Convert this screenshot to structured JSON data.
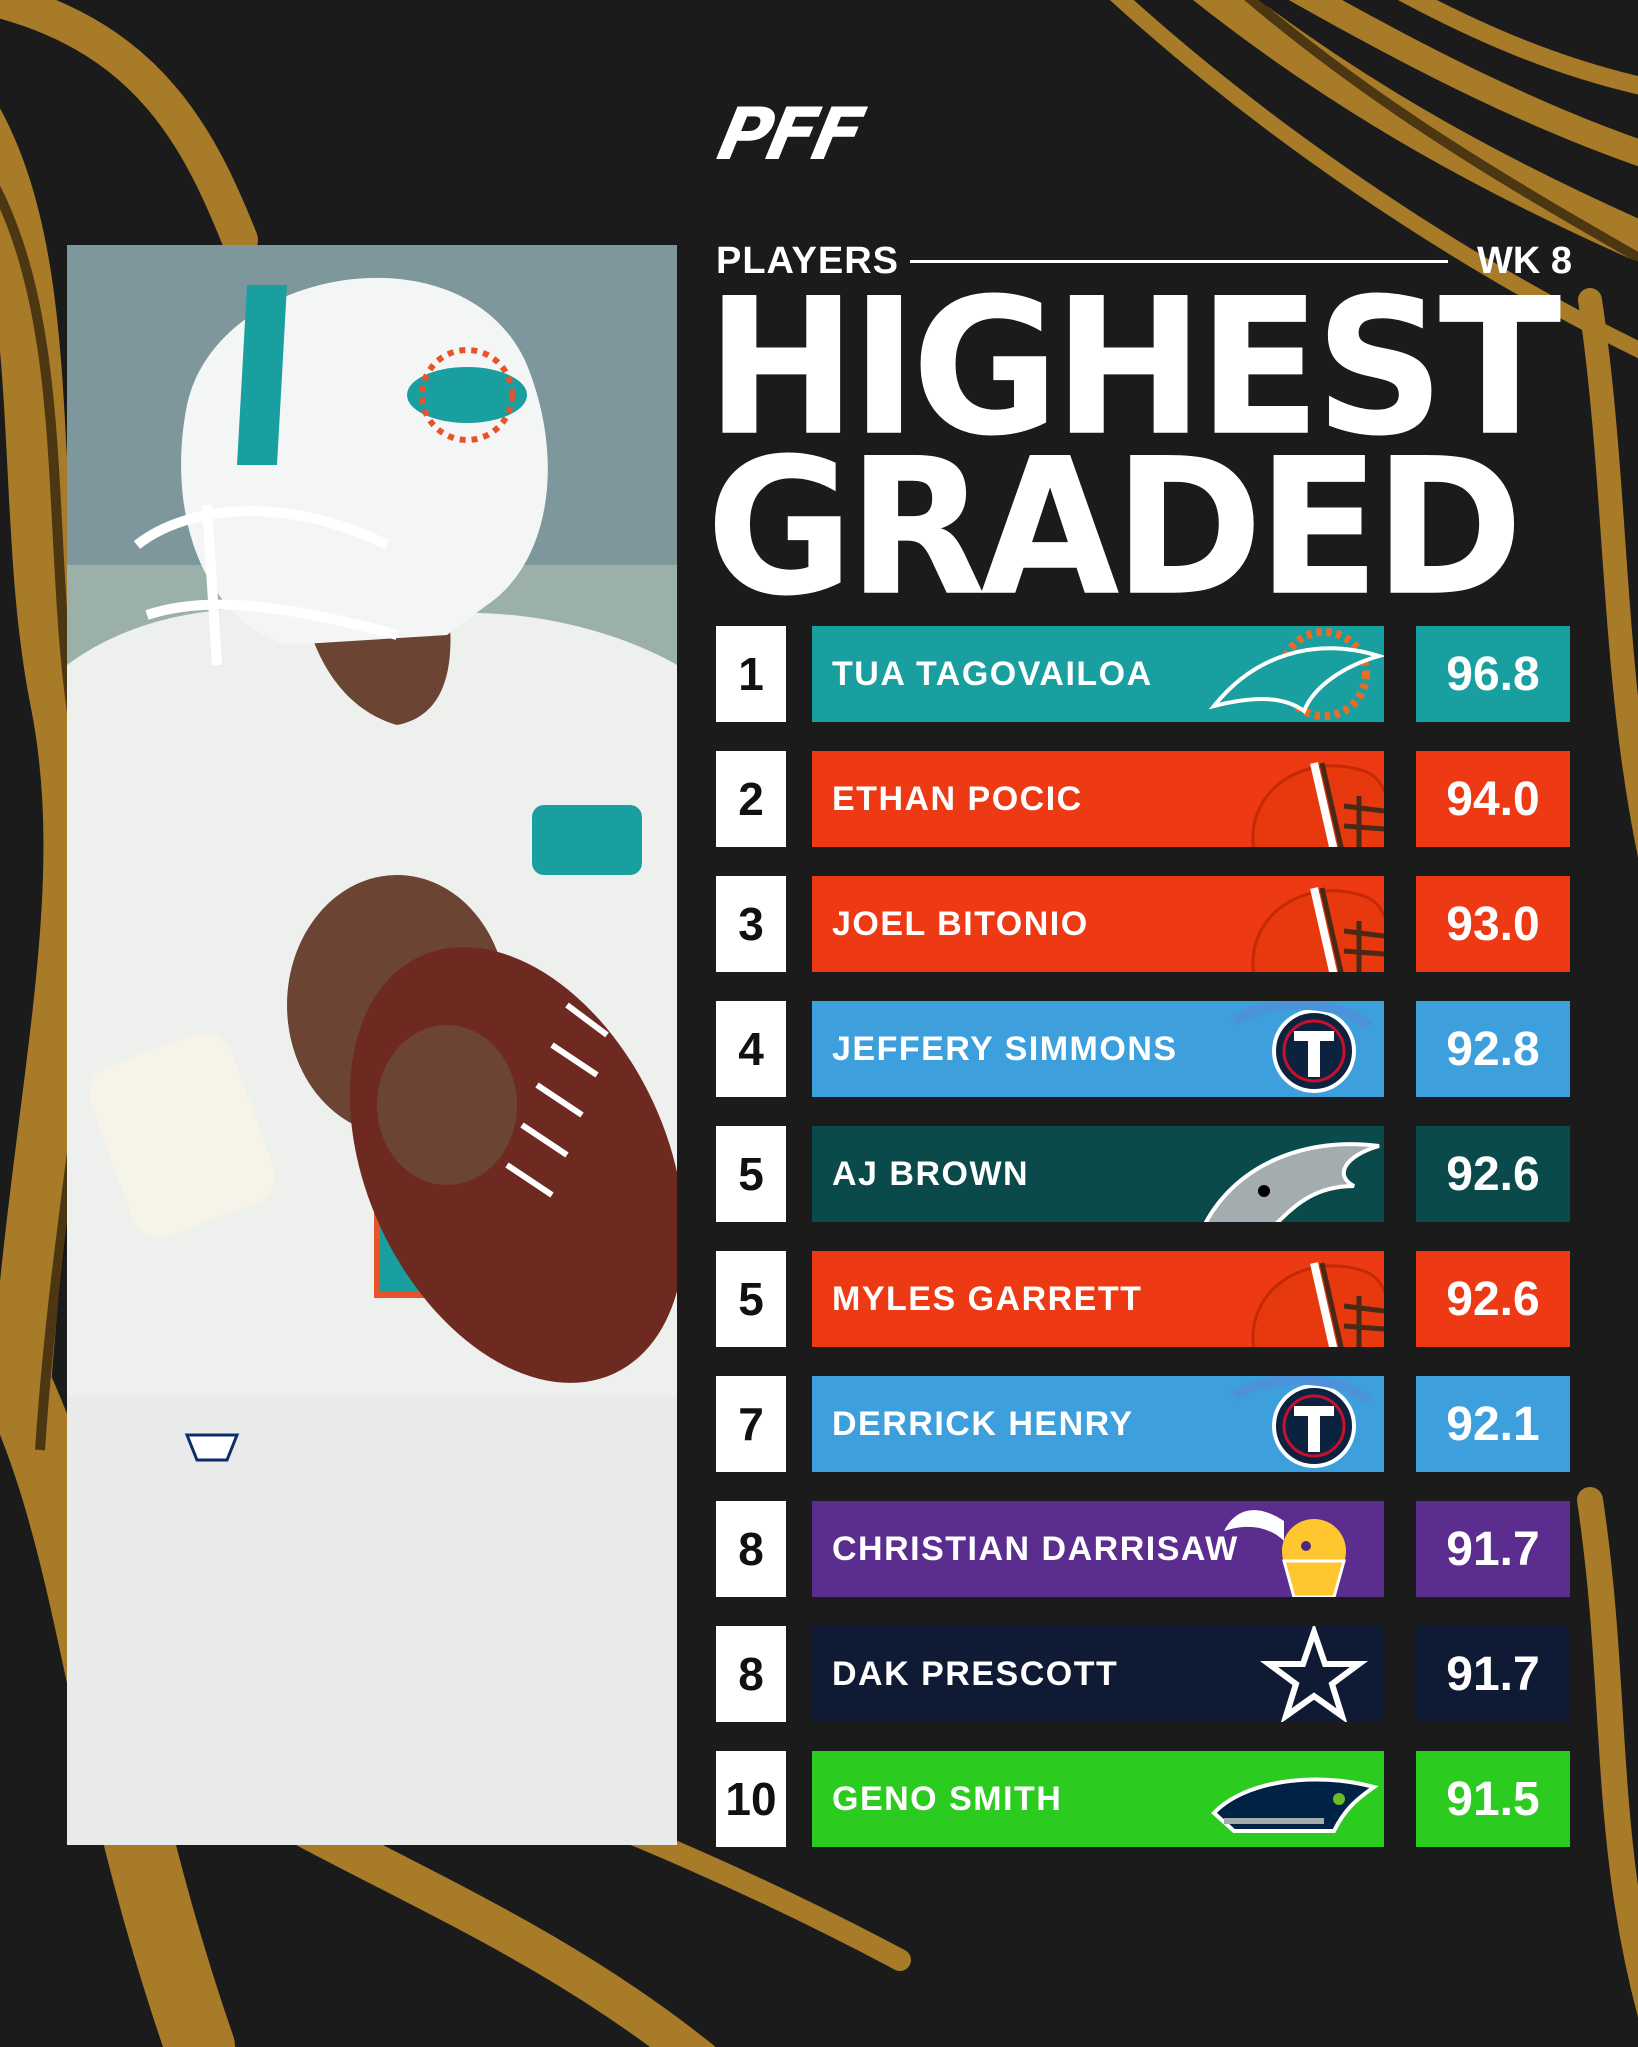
{
  "brand": {
    "logo_text": "PFF"
  },
  "header": {
    "left_label": "PLAYERS",
    "right_label": "WK 8"
  },
  "title": {
    "line1": "HIGHEST",
    "line2": "GRADED"
  },
  "colors": {
    "background": "#1b1b1c",
    "swirl": "#b8862a",
    "dolphins": "#1a9fa1",
    "browns": "#ee3a14",
    "titans": "#3d9fdc",
    "eagles": "#0b4a4a",
    "vikings": "#5b2d8f",
    "cowboys": "#0f1b35",
    "seahawks": "#2bcb1f"
  },
  "rankings": [
    {
      "rank": "1",
      "name": "TUA TAGOVAILOA",
      "grade": "96.8",
      "team_icon": "dolphins-logo-icon",
      "color": "#1a9fa1"
    },
    {
      "rank": "2",
      "name": "ETHAN POCIC",
      "grade": "94.0",
      "team_icon": "browns-helmet-icon",
      "color": "#ee3a14"
    },
    {
      "rank": "3",
      "name": "JOEL BITONIO",
      "grade": "93.0",
      "team_icon": "browns-helmet-icon",
      "color": "#ee3a14"
    },
    {
      "rank": "4",
      "name": "JEFFERY SIMMONS",
      "grade": "92.8",
      "team_icon": "titans-logo-icon",
      "color": "#3d9fdc"
    },
    {
      "rank": "5",
      "name": "AJ BROWN",
      "grade": "92.6",
      "team_icon": "eagles-logo-icon",
      "color": "#0b4a4a"
    },
    {
      "rank": "5",
      "name": "MYLES GARRETT",
      "grade": "92.6",
      "team_icon": "browns-helmet-icon",
      "color": "#ee3a14"
    },
    {
      "rank": "7",
      "name": "DERRICK HENRY",
      "grade": "92.1",
      "team_icon": "titans-logo-icon",
      "color": "#3d9fdc"
    },
    {
      "rank": "8",
      "name": "CHRISTIAN DARRISAW",
      "grade": "91.7",
      "team_icon": "vikings-logo-icon",
      "color": "#5b2d8f"
    },
    {
      "rank": "8",
      "name": "DAK PRESCOTT",
      "grade": "91.7",
      "team_icon": "cowboys-star-icon",
      "color": "#0f1b35"
    },
    {
      "rank": "10",
      "name": "GENO SMITH",
      "grade": "91.5",
      "team_icon": "seahawks-logo-icon",
      "color": "#2bcb1f"
    }
  ]
}
